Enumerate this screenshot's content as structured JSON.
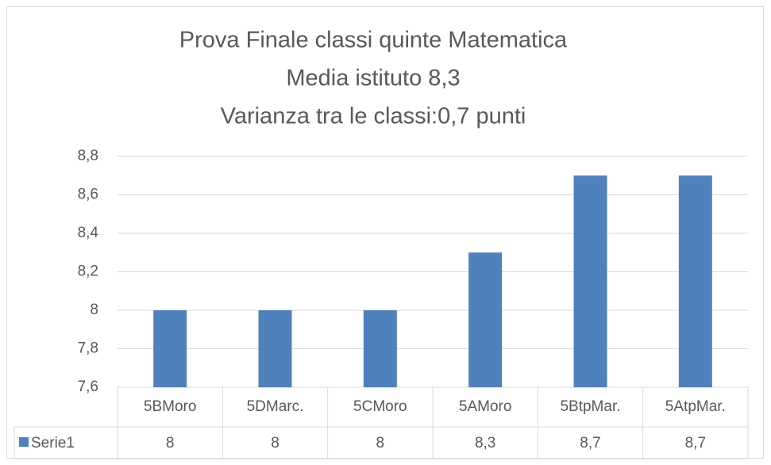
{
  "chart_data": {
    "type": "bar",
    "title": "Prova Finale classi quinte Matematica",
    "subtitle": [
      "Media istituto 8,3",
      "Varianza tra le classi:0,7 punti"
    ],
    "categories": [
      "5BMoro",
      "5DMarc.",
      "5CMoro",
      "5AMoro",
      "5BtpMar.",
      "5AtpMar."
    ],
    "series": [
      {
        "name": "Serie1",
        "color": "#4f81bd",
        "values": [
          8,
          8,
          8,
          8.3,
          8.7,
          8.7
        ],
        "value_labels": [
          "8",
          "8",
          "8",
          "8,3",
          "8,7",
          "8,7"
        ]
      }
    ],
    "ylim": [
      7.6,
      8.8
    ],
    "yticks": [
      {
        "value": 7.6,
        "label": "7,6"
      },
      {
        "value": 7.8,
        "label": "7,8"
      },
      8,
      {
        "value": 8.2,
        "label": "8,2"
      },
      {
        "value": 8.4,
        "label": "8,4"
      },
      {
        "value": 8.6,
        "label": "8,6"
      },
      {
        "value": 8.8,
        "label": "8,8"
      }
    ],
    "grid": true,
    "data_table": true
  }
}
